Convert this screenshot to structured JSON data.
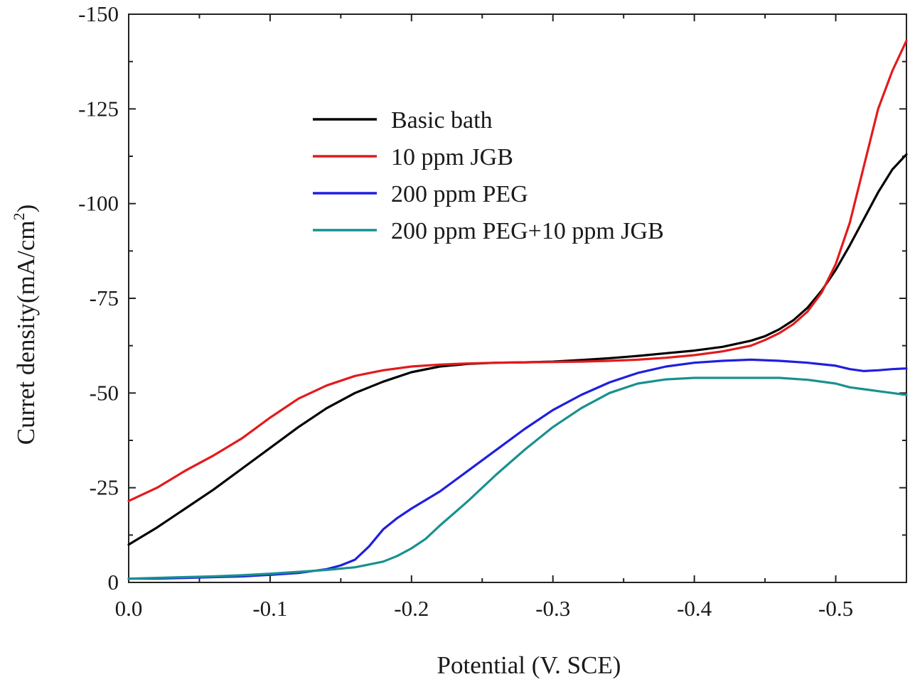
{
  "chart_data": {
    "type": "line",
    "title": "",
    "xlabel": "Potential (V. SCE)",
    "ylabel": "Curret density(mA/cm",
    "ylabel_superscript": "2",
    "ylabel_close": ")",
    "xlim": [
      0.0,
      -0.55
    ],
    "ylim": [
      0,
      -150
    ],
    "xticks": [
      0.0,
      -0.1,
      -0.2,
      -0.3,
      -0.4,
      -0.5
    ],
    "xtick_labels": [
      "0.0",
      "-0.1",
      "-0.2",
      "-0.3",
      "-0.4",
      "-0.5"
    ],
    "yticks": [
      0,
      -25,
      -50,
      -75,
      -100,
      -125,
      -150
    ],
    "ytick_labels": [
      "0",
      "-25",
      "-50",
      "-75",
      "-100",
      "-125",
      "-150"
    ],
    "grid": false,
    "legend_position": "upper-center",
    "series": [
      {
        "name": "Basic bath",
        "color": "#000000",
        "x": [
          0.0,
          -0.02,
          -0.04,
          -0.06,
          -0.08,
          -0.1,
          -0.12,
          -0.14,
          -0.16,
          -0.18,
          -0.2,
          -0.22,
          -0.24,
          -0.26,
          -0.28,
          -0.3,
          -0.32,
          -0.34,
          -0.36,
          -0.38,
          -0.4,
          -0.42,
          -0.44,
          -0.45,
          -0.46,
          -0.47,
          -0.48,
          -0.49,
          -0.5,
          -0.51,
          -0.52,
          -0.53,
          -0.54,
          -0.55
        ],
        "y": [
          -10,
          -14.5,
          -19.5,
          -24.5,
          -30,
          -35.5,
          -41,
          -46,
          -50,
          -53,
          -55.5,
          -57,
          -57.7,
          -58,
          -58.1,
          -58.3,
          -58.7,
          -59.2,
          -59.8,
          -60.5,
          -61.2,
          -62.2,
          -63.8,
          -65,
          -66.8,
          -69.2,
          -72.5,
          -77,
          -82.5,
          -89,
          -96,
          -103,
          -109,
          -113
        ]
      },
      {
        "name": "10 ppm JGB",
        "color": "#e31a1c",
        "x": [
          0.0,
          -0.02,
          -0.04,
          -0.06,
          -0.08,
          -0.1,
          -0.12,
          -0.14,
          -0.16,
          -0.18,
          -0.2,
          -0.22,
          -0.24,
          -0.26,
          -0.28,
          -0.3,
          -0.32,
          -0.34,
          -0.36,
          -0.38,
          -0.4,
          -0.42,
          -0.44,
          -0.45,
          -0.46,
          -0.47,
          -0.48,
          -0.49,
          -0.5,
          -0.51,
          -0.52,
          -0.53,
          -0.54,
          -0.55
        ],
        "y": [
          -21.5,
          -25,
          -29.5,
          -33.5,
          -38,
          -43.5,
          -48.5,
          -52,
          -54.5,
          -56,
          -57,
          -57.5,
          -57.8,
          -58,
          -58.1,
          -58.2,
          -58.3,
          -58.5,
          -58.8,
          -59.3,
          -60,
          -61,
          -62.5,
          -64,
          -65.8,
          -68.2,
          -71.5,
          -76.5,
          -84,
          -95,
          -110,
          -125,
          -135,
          -143
        ]
      },
      {
        "name": "200 ppm PEG",
        "color": "#1f1fe0",
        "x": [
          0.0,
          -0.02,
          -0.04,
          -0.06,
          -0.08,
          -0.1,
          -0.12,
          -0.14,
          -0.15,
          -0.16,
          -0.17,
          -0.18,
          -0.19,
          -0.2,
          -0.22,
          -0.24,
          -0.26,
          -0.28,
          -0.3,
          -0.32,
          -0.34,
          -0.36,
          -0.38,
          -0.4,
          -0.42,
          -0.44,
          -0.46,
          -0.48,
          -0.5,
          -0.51,
          -0.52,
          -0.53,
          -0.54,
          -0.55
        ],
        "y": [
          -1,
          -1,
          -1.2,
          -1.4,
          -1.6,
          -2,
          -2.5,
          -3.5,
          -4.5,
          -6,
          -9.5,
          -14,
          -17,
          -19.5,
          -24,
          -29.5,
          -35,
          -40.5,
          -45.5,
          -49.5,
          -52.8,
          -55.3,
          -57,
          -58,
          -58.5,
          -58.8,
          -58.5,
          -58,
          -57.2,
          -56.3,
          -55.8,
          -56,
          -56.3,
          -56.5
        ]
      },
      {
        "name": "200 ppm PEG+10 ppm JGB",
        "color": "#1a9090",
        "x": [
          0.0,
          -0.02,
          -0.04,
          -0.06,
          -0.08,
          -0.1,
          -0.12,
          -0.14,
          -0.16,
          -0.18,
          -0.19,
          -0.2,
          -0.21,
          -0.22,
          -0.24,
          -0.26,
          -0.28,
          -0.3,
          -0.32,
          -0.34,
          -0.36,
          -0.38,
          -0.4,
          -0.42,
          -0.44,
          -0.46,
          -0.48,
          -0.5,
          -0.51,
          -0.52,
          -0.53,
          -0.54,
          -0.55
        ],
        "y": [
          -1,
          -1.2,
          -1.4,
          -1.6,
          -1.9,
          -2.3,
          -2.8,
          -3.3,
          -4,
          -5.5,
          -7,
          -9,
          -11.5,
          -15,
          -21.5,
          -28.5,
          -35,
          -41,
          -46,
          -50,
          -52.5,
          -53.6,
          -54,
          -54,
          -54,
          -54,
          -53.5,
          -52.5,
          -51.5,
          -51,
          -50.5,
          -50,
          -49.5
        ]
      }
    ]
  }
}
